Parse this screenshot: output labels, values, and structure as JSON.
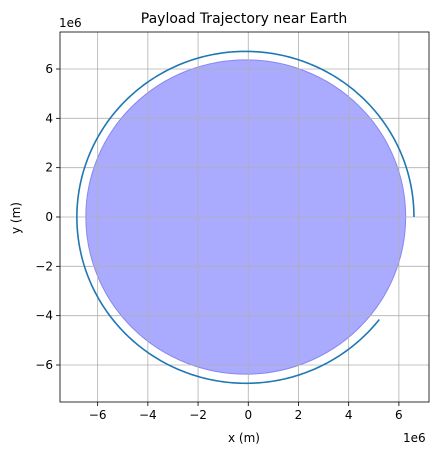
{
  "chart_data": {
    "type": "line",
    "title": "Payload Trajectory near Earth",
    "xlabel": "x (m)",
    "ylabel": "y (m)",
    "x_offset_label": "1e6",
    "y_offset_label": "1e6",
    "xlim": [
      -7500000.0,
      7200000.0
    ],
    "ylim": [
      -7500000.0,
      7500000.0
    ],
    "x_ticks": [
      -6000000.0,
      -4000000.0,
      -2000000.0,
      0,
      2000000.0,
      4000000.0,
      6000000.0
    ],
    "y_ticks": [
      -6000000.0,
      -4000000.0,
      -2000000.0,
      0,
      2000000.0,
      4000000.0,
      6000000.0
    ],
    "x_tick_labels": [
      "−6",
      "−4",
      "−2",
      "0",
      "2",
      "4",
      "6"
    ],
    "y_tick_labels": [
      "−6",
      "−4",
      "−2",
      "0",
      "2",
      "4",
      "6"
    ],
    "grid": true,
    "earth": {
      "center": [
        -100000.0,
        0
      ],
      "radius": 6371000.0,
      "color": "#aaaaff",
      "edge_color": "#8888ee"
    },
    "trajectory": {
      "color": "#1f77b4",
      "start_radius": 6700000.0,
      "end_radius": 6750000.0,
      "center": [
        -100000.0,
        0
      ],
      "start_angle_deg": 0,
      "end_angle_deg": 322
    }
  }
}
